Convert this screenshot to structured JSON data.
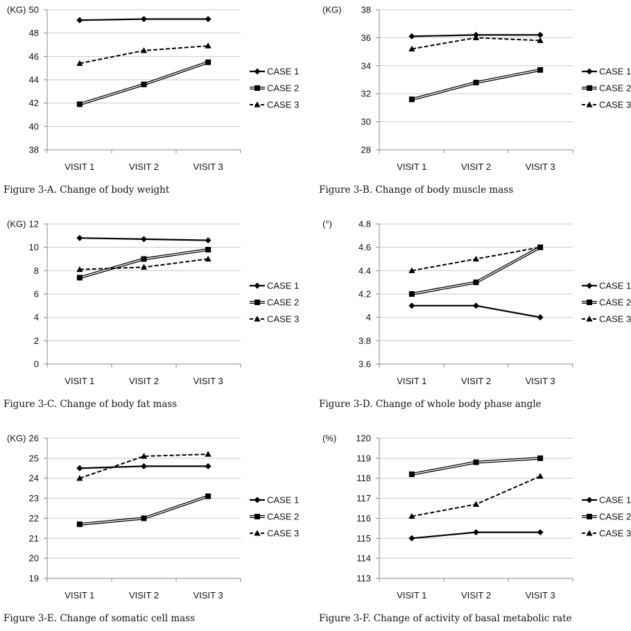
{
  "chart_data": [
    {
      "type": "line",
      "caption": "Figure 3-A. Change of body weight",
      "unit": "(KG)",
      "categories": [
        "VISIT 1",
        "VISIT 2",
        "VISIT 3"
      ],
      "ylim": [
        38,
        50
      ],
      "yticks": [
        38,
        40,
        42,
        44,
        46,
        48,
        50
      ],
      "ytick_labels": [
        "38",
        "40",
        "42",
        "44",
        "46",
        "48",
        "50"
      ],
      "grid": true,
      "legend": "right",
      "series": [
        {
          "name": "CASE 1",
          "values": [
            49.1,
            49.2,
            49.2
          ]
        },
        {
          "name": "CASE 2",
          "values": [
            41.9,
            43.6,
            45.5
          ]
        },
        {
          "name": "CASE 3",
          "values": [
            45.4,
            46.5,
            46.9
          ]
        }
      ]
    },
    {
      "type": "line",
      "caption": "Figure 3-B. Change of body muscle mass",
      "unit": "(KG)",
      "categories": [
        "VISIT 1",
        "VISIT 2",
        "VISIT 3"
      ],
      "ylim": [
        28,
        38
      ],
      "yticks": [
        28,
        30,
        32,
        34,
        36,
        38
      ],
      "ytick_labels": [
        "28",
        "30",
        "32",
        "34",
        "36",
        "38"
      ],
      "grid": true,
      "legend": "right",
      "series": [
        {
          "name": "CASE 1",
          "values": [
            36.1,
            36.2,
            36.2
          ]
        },
        {
          "name": "CASE 2",
          "values": [
            31.6,
            32.8,
            33.7
          ]
        },
        {
          "name": "CASE 3",
          "values": [
            35.2,
            36.0,
            35.8
          ]
        }
      ]
    },
    {
      "type": "line",
      "caption": "Figure 3-C. Change of body fat mass",
      "unit": "(KG)",
      "categories": [
        "VISIT 1",
        "VISIT 2",
        "VISIT 3"
      ],
      "ylim": [
        0,
        12
      ],
      "yticks": [
        0,
        2,
        4,
        6,
        8,
        10,
        12
      ],
      "ytick_labels": [
        "0",
        "2",
        "4",
        "6",
        "8",
        "10",
        "12"
      ],
      "grid": true,
      "legend": "right",
      "series": [
        {
          "name": "CASE 1",
          "values": [
            10.8,
            10.7,
            10.6
          ]
        },
        {
          "name": "CASE 2",
          "values": [
            7.4,
            9.0,
            9.8
          ]
        },
        {
          "name": "CASE 3",
          "values": [
            8.1,
            8.3,
            9.0
          ]
        }
      ]
    },
    {
      "type": "line",
      "caption": "Figure 3-D. Change of whole body phase angle",
      "unit": "(°)",
      "categories": [
        "VISIT 1",
        "VISIT 2",
        "VISIT 3"
      ],
      "ylim": [
        3.6,
        4.8
      ],
      "yticks": [
        3.6,
        3.8,
        4.0,
        4.2,
        4.4,
        4.6,
        4.8
      ],
      "ytick_labels": [
        "3.6",
        "3.8",
        "4",
        "4.2",
        "4.4",
        "4.6",
        "4.8"
      ],
      "grid": true,
      "legend": "right",
      "series": [
        {
          "name": "CASE 1",
          "values": [
            4.1,
            4.1,
            4.0
          ]
        },
        {
          "name": "CASE 2",
          "values": [
            4.2,
            4.3,
            4.6
          ]
        },
        {
          "name": "CASE 3",
          "values": [
            4.4,
            4.5,
            4.6
          ]
        }
      ]
    },
    {
      "type": "line",
      "caption": "Figure 3-E. Change of somatic cell mass",
      "unit": "(KG)",
      "categories": [
        "VISIT 1",
        "VISIT 2",
        "VISIT 3"
      ],
      "ylim": [
        19,
        26
      ],
      "yticks": [
        19,
        20,
        21,
        22,
        23,
        24,
        25,
        26
      ],
      "ytick_labels": [
        "19",
        "20",
        "21",
        "22",
        "23",
        "24",
        "25",
        "26"
      ],
      "grid": true,
      "legend": "right",
      "series": [
        {
          "name": "CASE 1",
          "values": [
            24.5,
            24.6,
            24.6
          ]
        },
        {
          "name": "CASE 2",
          "values": [
            21.7,
            22.0,
            23.1
          ]
        },
        {
          "name": "CASE 3",
          "values": [
            24.0,
            25.1,
            25.2
          ]
        }
      ]
    },
    {
      "type": "line",
      "caption": "Figure 3-F. Change of activity of basal metabolic rate",
      "unit": "(%)",
      "categories": [
        "VISIT 1",
        "VISIT 2",
        "VISIT 3"
      ],
      "ylim": [
        113,
        120
      ],
      "yticks": [
        113,
        114,
        115,
        116,
        117,
        118,
        119,
        120
      ],
      "ytick_labels": [
        "113",
        "114",
        "115",
        "116",
        "117",
        "118",
        "119",
        "120"
      ],
      "grid": true,
      "legend": "right",
      "series": [
        {
          "name": "CASE 1",
          "values": [
            115.0,
            115.3,
            115.3
          ]
        },
        {
          "name": "CASE 2",
          "values": [
            118.2,
            118.8,
            119.0
          ]
        },
        {
          "name": "CASE 3",
          "values": [
            116.1,
            116.7,
            118.1
          ]
        }
      ]
    }
  ]
}
